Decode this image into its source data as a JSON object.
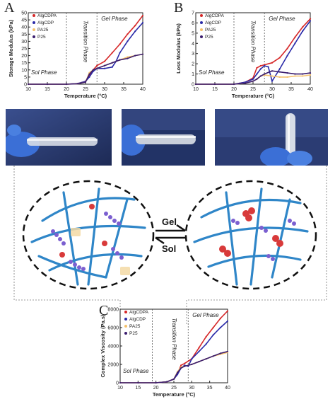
{
  "figure": {
    "panel_labels": [
      "A",
      "B",
      "C"
    ],
    "center": {
      "gel_label": "Gel",
      "sol_label": "Sol"
    }
  },
  "chart_data": [
    {
      "type": "line",
      "panel": "A",
      "xlabel": "Temperature (°C)",
      "ylabel": "Storage Modulus (kPa)",
      "xlim": [
        10,
        40
      ],
      "ylim": [
        0,
        50
      ],
      "xticks": [
        10,
        15,
        20,
        25,
        30,
        35,
        40
      ],
      "yticks": [
        0,
        5,
        10,
        15,
        20,
        25,
        30,
        35,
        40,
        45,
        50
      ],
      "phase_labels": [
        "Sol Phase",
        "Transition Phase",
        "Gel Phase"
      ],
      "phase_boundaries": [
        20,
        28
      ],
      "legend": "top-left",
      "series": [
        {
          "name": "AlgCDPA",
          "color": "#d62728",
          "x": [
            10,
            15,
            20,
            23,
            25,
            26,
            27,
            28,
            30,
            32,
            34,
            36,
            38,
            40
          ],
          "y": [
            0,
            0,
            0,
            0.5,
            2,
            6,
            10,
            13,
            16,
            22,
            28,
            35,
            41,
            48
          ]
        },
        {
          "name": "AlgCDP",
          "color": "#2a2aa8",
          "x": [
            10,
            15,
            20,
            23,
            25,
            26,
            27,
            28,
            30,
            32,
            33,
            34,
            36,
            38,
            40
          ],
          "y": [
            0,
            0,
            0,
            0.5,
            2,
            5,
            9,
            11,
            11,
            12,
            16,
            22,
            30,
            37,
            43
          ]
        },
        {
          "name": "PA25",
          "color": "#f5c16b",
          "x": [
            10,
            15,
            20,
            23,
            25,
            26,
            27,
            28,
            30,
            32,
            34,
            36,
            38,
            40
          ],
          "y": [
            0,
            0,
            0,
            0.3,
            1.5,
            8,
            10,
            11,
            13,
            15,
            17,
            19,
            20,
            21
          ]
        },
        {
          "name": "P25",
          "color": "#3b1d6e",
          "x": [
            10,
            15,
            20,
            23,
            25,
            26,
            27,
            28,
            30,
            32,
            34,
            36,
            38,
            40
          ],
          "y": [
            0,
            0,
            0,
            0.3,
            1.5,
            7,
            10,
            11,
            13,
            15,
            17,
            18,
            20,
            21
          ]
        }
      ]
    },
    {
      "type": "line",
      "panel": "B",
      "xlabel": "Temperature (°C)",
      "ylabel": "Loss Modulus (kPa)",
      "xlim": [
        10,
        40
      ],
      "ylim": [
        0,
        7
      ],
      "xticks": [
        10,
        15,
        20,
        25,
        30,
        35,
        40
      ],
      "yticks": [
        0,
        1,
        2,
        3,
        4,
        5,
        6,
        7
      ],
      "phase_labels": [
        "Sol Phase",
        "Transition Phase",
        "Gel Phase"
      ],
      "phase_boundaries": [
        20,
        28
      ],
      "legend": "top-left",
      "series": [
        {
          "name": "AlgCDPA",
          "color": "#d62728",
          "x": [
            10,
            15,
            20,
            23,
            25,
            26,
            27,
            28,
            30,
            32,
            34,
            36,
            38,
            40
          ],
          "y": [
            0,
            0,
            0,
            0.2,
            0.6,
            1.6,
            1.8,
            1.9,
            2.1,
            2.6,
            3.5,
            4.6,
            5.6,
            6.4
          ]
        },
        {
          "name": "AlgCDP",
          "color": "#2a2aa8",
          "x": [
            10,
            15,
            20,
            23,
            25,
            26,
            27,
            28,
            29,
            30,
            32,
            34,
            36,
            38,
            40
          ],
          "y": [
            0,
            0,
            0,
            0.2,
            0.5,
            1,
            1.5,
            1.8,
            1.7,
            0.3,
            1.5,
            2.8,
            4,
            5.2,
            6.2
          ]
        },
        {
          "name": "PA25",
          "color": "#f5c16b",
          "x": [
            10,
            15,
            20,
            23,
            25,
            26,
            27,
            28,
            30,
            32,
            34,
            36,
            38,
            40
          ],
          "y": [
            0,
            0,
            0,
            0.1,
            0.3,
            0.5,
            0.8,
            0.9,
            0.8,
            0.7,
            0.7,
            0.8,
            0.8,
            0.9
          ]
        },
        {
          "name": "P25",
          "color": "#3b1d6e",
          "x": [
            10,
            15,
            20,
            23,
            25,
            26,
            27,
            28,
            30,
            32,
            34,
            36,
            38,
            40
          ],
          "y": [
            0,
            0,
            0,
            0.1,
            0.3,
            0.5,
            0.8,
            1,
            1.3,
            1.2,
            1.1,
            1,
            1,
            1.1
          ]
        }
      ]
    },
    {
      "type": "line",
      "panel": "C",
      "xlabel": "Temperature (°C)",
      "ylabel": "Complex Viscosity (Pa.s)",
      "xlim": [
        10,
        40
      ],
      "ylim": [
        0,
        8000
      ],
      "xticks": [
        10,
        15,
        20,
        25,
        30,
        35,
        40
      ],
      "yticks": [
        0,
        2000,
        4000,
        6000,
        8000
      ],
      "phase_labels": [
        "Sol Phase",
        "Transition Phase",
        "Gel Phase"
      ],
      "phase_boundaries": [
        19,
        29
      ],
      "legend": "top-left",
      "series": [
        {
          "name": "AlgCDPA",
          "color": "#d62728",
          "x": [
            10,
            15,
            20,
            23,
            25,
            26,
            27,
            28,
            30,
            32,
            34,
            36,
            38,
            40
          ],
          "y": [
            0,
            0,
            0,
            100,
            400,
            1000,
            1900,
            2100,
            2600,
            3800,
            5000,
            6000,
            7000,
            7800
          ]
        },
        {
          "name": "AlgCDP",
          "color": "#2a2aa8",
          "x": [
            10,
            15,
            20,
            23,
            25,
            26,
            27,
            28,
            29,
            30,
            32,
            34,
            36,
            38,
            40
          ],
          "y": [
            0,
            0,
            0,
            100,
            400,
            900,
            1600,
            1900,
            1800,
            2600,
            3400,
            4200,
            5200,
            6000,
            6700
          ]
        },
        {
          "name": "PA25",
          "color": "#f5c16b",
          "x": [
            10,
            15,
            20,
            23,
            25,
            26,
            27,
            28,
            30,
            32,
            34,
            36,
            38,
            40
          ],
          "y": [
            0,
            0,
            0,
            100,
            400,
            1200,
            1700,
            1800,
            2000,
            2300,
            2600,
            2900,
            3100,
            3300
          ]
        },
        {
          "name": "P25",
          "color": "#3b1d6e",
          "x": [
            10,
            15,
            20,
            23,
            25,
            26,
            27,
            28,
            30,
            32,
            34,
            36,
            38,
            40
          ],
          "y": [
            0,
            0,
            0,
            100,
            400,
            1100,
            1600,
            1800,
            2000,
            2300,
            2600,
            2900,
            3200,
            3400
          ]
        }
      ]
    }
  ]
}
